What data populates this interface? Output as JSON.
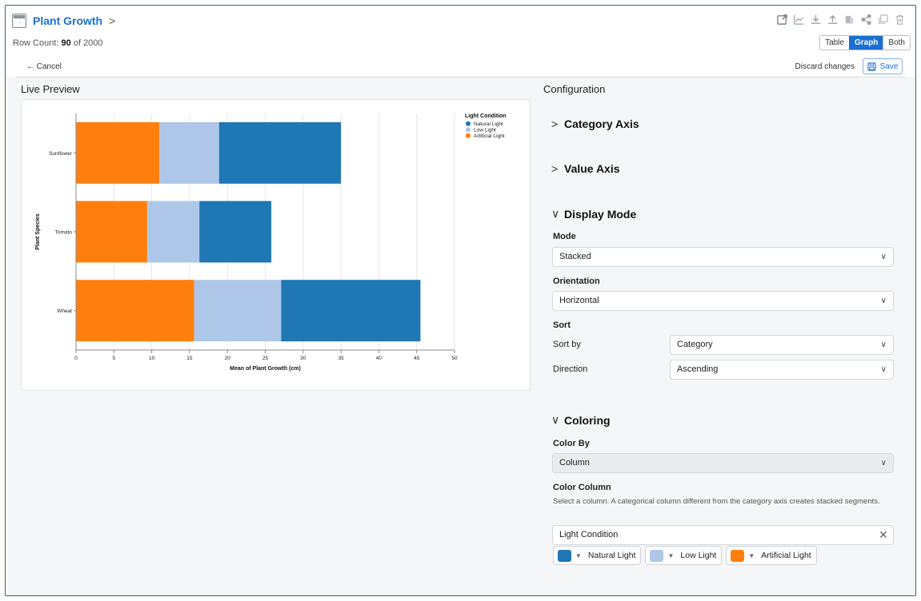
{
  "header": {
    "title": "Plant Growth",
    "title_chevron": ">",
    "row_count_prefix": "Row Count: ",
    "row_count_value": "90",
    "row_count_suffix": " of 2000",
    "view_toggle": [
      "Table",
      "Graph",
      "Both"
    ],
    "active_view": "Graph",
    "cancel_label": "← Cancel",
    "discard_label": "Discard changes",
    "save_label": "Save",
    "toolbar_icons": [
      "external-link-icon",
      "chart-icon",
      "download-icon",
      "upload-icon",
      "copy-pages-icon",
      "share-icon",
      "duplicate-icon",
      "trash-icon"
    ]
  },
  "live_preview": {
    "title": "Live Preview"
  },
  "chart_data": {
    "type": "bar",
    "orientation": "horizontal",
    "stacked": true,
    "categories": [
      "Sunflower",
      "Tomato",
      "Wheat"
    ],
    "series": [
      {
        "name": "Artificial Light",
        "color": "#ff7f0e",
        "values": [
          11.0,
          9.4,
          15.6
        ]
      },
      {
        "name": "Low Light",
        "color": "#aec7e8",
        "values": [
          7.9,
          6.9,
          11.5
        ]
      },
      {
        "name": "Natural Light",
        "color": "#1f77b4",
        "values": [
          16.1,
          9.5,
          18.4
        ]
      }
    ],
    "xlabel": "Mean of Plant Growth (cm)",
    "ylabel": "Plant Species",
    "xlim": [
      0,
      50
    ],
    "xticks": [
      0,
      5,
      10,
      15,
      20,
      25,
      30,
      35,
      40,
      45,
      50
    ],
    "grid": true,
    "legend": {
      "title": "Light Condition",
      "placement": "top-right",
      "entries": [
        {
          "name": "Natural Light",
          "color": "#1f77b4"
        },
        {
          "name": "Low Light",
          "color": "#aec7e8"
        },
        {
          "name": "Artificial Light",
          "color": "#ff7f0e"
        }
      ]
    }
  },
  "config": {
    "title": "Configuration",
    "category_axis": "Category Axis",
    "value_axis": "Value Axis",
    "display_mode": "Display Mode",
    "mode_label": "Mode",
    "mode_value": "Stacked",
    "orientation_label": "Orientation",
    "orientation_value": "Horizontal",
    "sort_label": "Sort",
    "sort_by_label": "Sort by",
    "sort_by_value": "Category",
    "direction_label": "Direction",
    "direction_value": "Ascending",
    "coloring": "Coloring",
    "color_by_label": "Color By",
    "color_by_value": "Column",
    "color_column_label": "Color Column",
    "color_column_hint": "Select a column. A categorical column different from the category axis creates stacked segments.",
    "color_column_value": "Light Condition",
    "color_chips": [
      {
        "label": "Natural Light",
        "color": "#1f77b4"
      },
      {
        "label": "Low Light",
        "color": "#aec7e8"
      },
      {
        "label": "Artificial Light",
        "color": "#ff7f0e"
      }
    ]
  }
}
